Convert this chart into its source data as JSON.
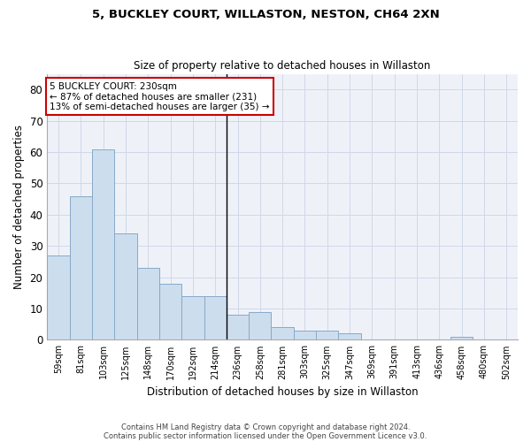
{
  "title1": "5, BUCKLEY COURT, WILLASTON, NESTON, CH64 2XN",
  "title2": "Size of property relative to detached houses in Willaston",
  "xlabel": "Distribution of detached houses by size in Willaston",
  "ylabel": "Number of detached properties",
  "categories": [
    "59sqm",
    "81sqm",
    "103sqm",
    "125sqm",
    "148sqm",
    "170sqm",
    "192sqm",
    "214sqm",
    "236sqm",
    "258sqm",
    "281sqm",
    "303sqm",
    "325sqm",
    "347sqm",
    "369sqm",
    "391sqm",
    "413sqm",
    "436sqm",
    "458sqm",
    "480sqm",
    "502sqm"
  ],
  "values": [
    27,
    46,
    61,
    34,
    23,
    18,
    14,
    14,
    8,
    9,
    4,
    3,
    3,
    2,
    0,
    0,
    0,
    0,
    1,
    0,
    0
  ],
  "bar_color": "#ccdded",
  "bar_edge_color": "#88aac8",
  "grid_color": "#d0d8e8",
  "bg_color": "#eef2f8",
  "fig_color": "#ffffff",
  "annotation_line1": "5 BUCKLEY COURT: 230sqm",
  "annotation_line2": "← 87% of detached houses are smaller (231)",
  "annotation_line3": "13% of semi-detached houses are larger (35) →",
  "annotation_box_color": "#ffffff",
  "annotation_border_color": "#cc0000",
  "vline_x_index": 7.5,
  "ylim": [
    0,
    85
  ],
  "yticks": [
    0,
    10,
    20,
    30,
    40,
    50,
    60,
    70,
    80
  ],
  "footer1": "Contains HM Land Registry data © Crown copyright and database right 2024.",
  "footer2": "Contains public sector information licensed under the Open Government Licence v3.0."
}
